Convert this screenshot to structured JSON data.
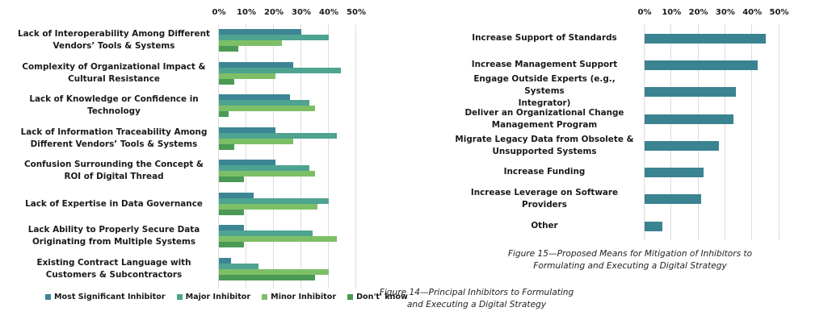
{
  "chart_data": [
    {
      "type": "bar",
      "orientation": "horizontal",
      "title": "Figure 14—Principal Inhibitors to Formulating and Executing a Digital Strategy",
      "caption_lines": [
        "Figure 14—Principal Inhibitors to Formulating",
        "and Executing a Digital Strategy"
      ],
      "xlabel": "",
      "ylabel": "",
      "xlim": [
        0,
        50
      ],
      "x_ticks": [
        "0%",
        "10%",
        "20%",
        "30%",
        "40%",
        "50%"
      ],
      "grid": true,
      "legend_position": "bottom",
      "categories": [
        [
          "Lack of Interoperability Among Different",
          "Vendors’ Tools & Systems"
        ],
        [
          "Complexity of Organizational Impact &",
          "Cultural Resistance"
        ],
        [
          "Lack of Knowledge or Confidence in",
          "Technology"
        ],
        [
          "Lack of Information Traceability Among",
          "Different Vendors’ Tools & Systems"
        ],
        [
          "Confusion Surrounding the Concept &",
          "ROI of Digital Thread"
        ],
        [
          "Lack of Expertise in Data Governance"
        ],
        [
          "Lack Ability to Properly Secure Data",
          "Originating from Multiple Systems"
        ],
        [
          "Existing Contract Language with",
          "Customers & Subcontractors"
        ]
      ],
      "series": [
        {
          "name": "Most Significant Inhibitor",
          "color": "#3d8594",
          "values": [
            30,
            27,
            26,
            20.5,
            20.5,
            12.5,
            9,
            4.5
          ]
        },
        {
          "name": "Major Inhibitor",
          "color": "#4ea391",
          "values": [
            40,
            44.5,
            33,
            43,
            33,
            40,
            34,
            14.5
          ]
        },
        {
          "name": "Minor Inhibitor",
          "color": "#7dbf66",
          "values": [
            23,
            20.5,
            35,
            27,
            35,
            36,
            43,
            40
          ]
        },
        {
          "name": "Don't' know",
          "color": "#4a9a55",
          "values": [
            7,
            5.5,
            3.5,
            5.5,
            9,
            9,
            9,
            35
          ]
        }
      ]
    },
    {
      "type": "bar",
      "orientation": "horizontal",
      "title": "Figure 15—Proposed Means for Mitigation of Inhibitors to Formulating and Executing a Digital Strategy",
      "caption_lines": [
        "Figure 15—Proposed Means for Mitigation of Inhibitors to",
        "Formulating and Executing a Digital Strategy"
      ],
      "xlabel": "",
      "ylabel": "",
      "xlim": [
        0,
        50
      ],
      "x_ticks": [
        "0%",
        "10%",
        "20%",
        "30%",
        "40%",
        "50%"
      ],
      "grid": true,
      "categories": [
        [
          "Increase Support of Standards"
        ],
        [
          "Increase Management Support"
        ],
        [
          "Engage Outside Experts (e.g., Systems",
          "Integrator)"
        ],
        [
          "Deliver an Organizational Change",
          "Management Program"
        ],
        [
          "Migrate Legacy Data from Obsolete &",
          "Unsupported Systems"
        ],
        [
          "Increase Funding"
        ],
        [
          "Increase Leverage on Software",
          "Providers"
        ],
        [
          "Other"
        ]
      ],
      "series": [
        {
          "name": "Proposed Means",
          "color": "#3a8390",
          "values": [
            45,
            42,
            34,
            33,
            27.5,
            22,
            21,
            6.5
          ]
        }
      ]
    }
  ]
}
